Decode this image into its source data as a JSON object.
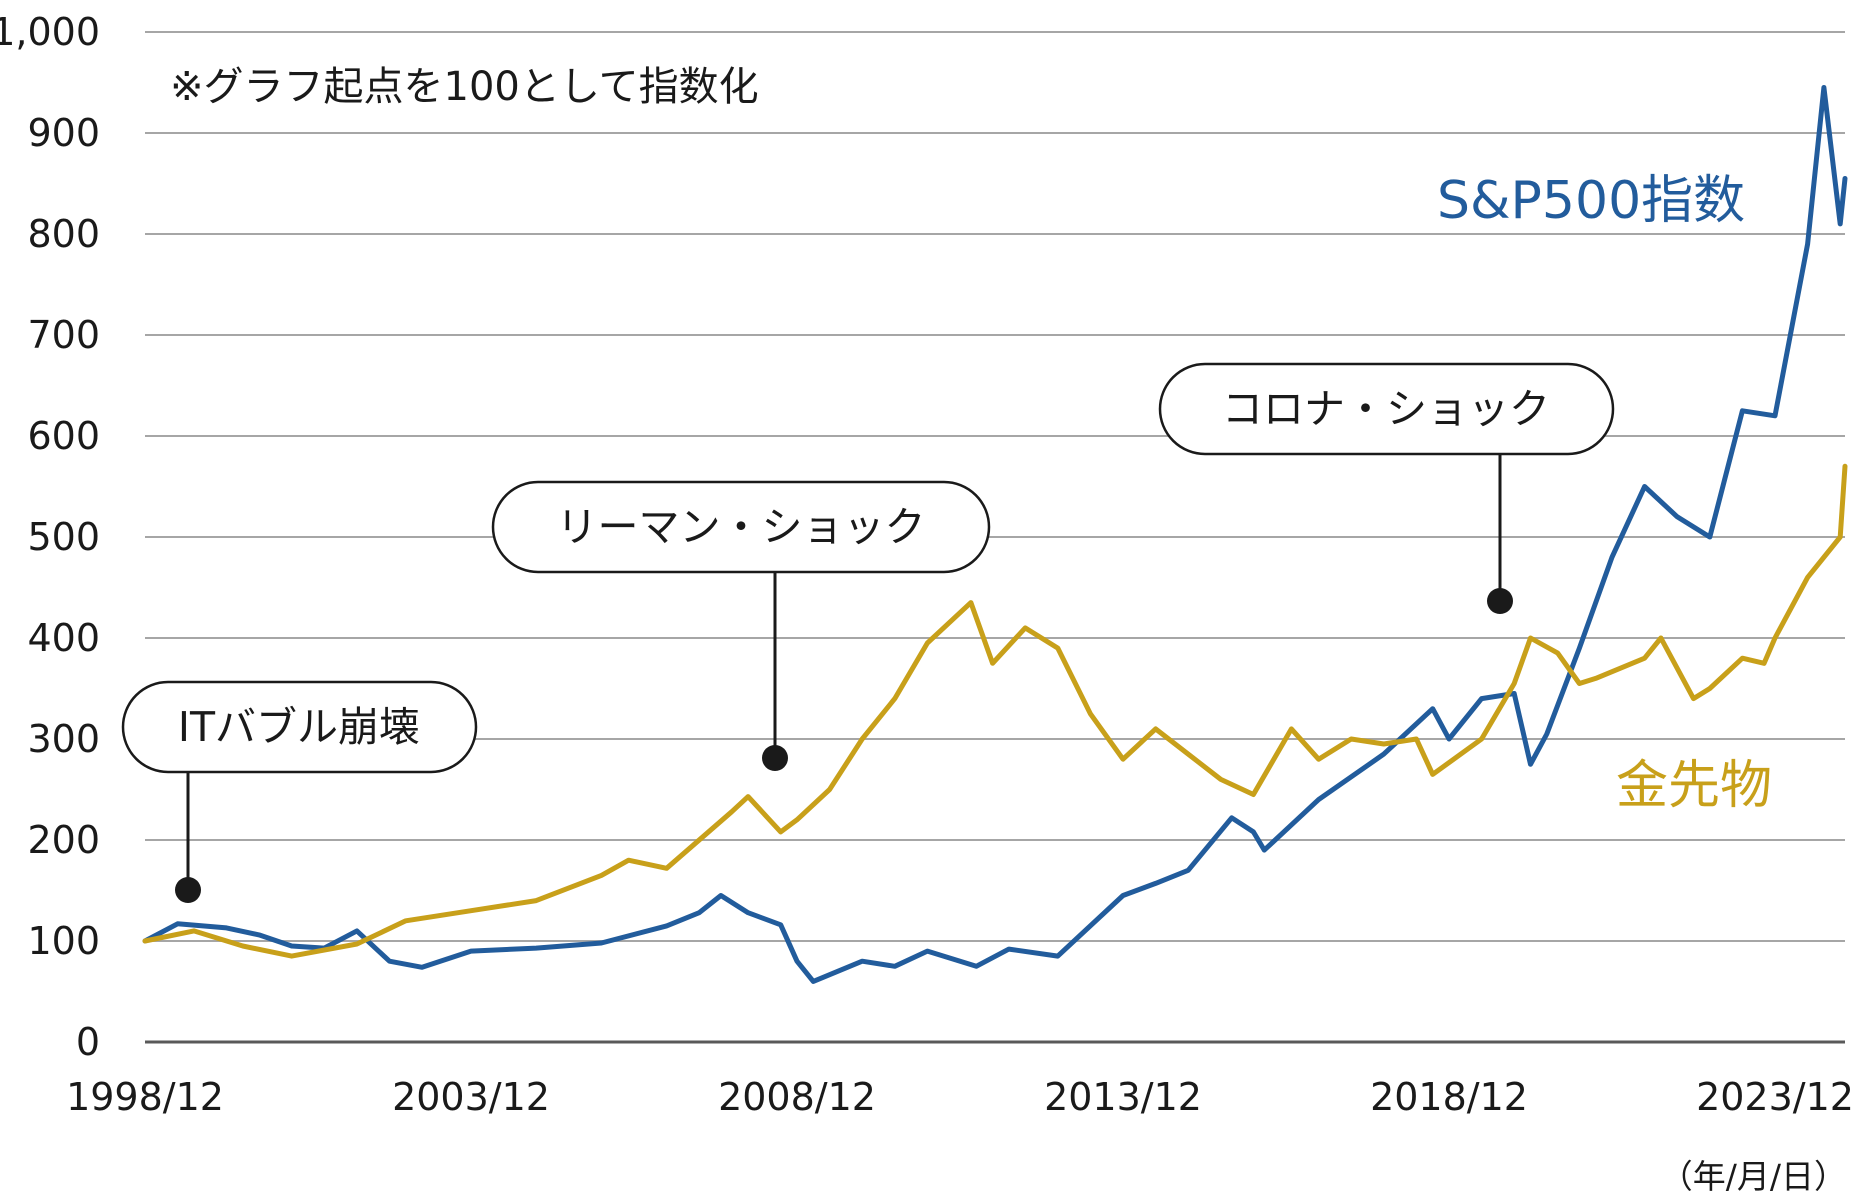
{
  "chart_data": {
    "type": "line",
    "title": "",
    "annotation_note": "※グラフ起点を100として指数化",
    "unit_note": "（年/月/日）",
    "xlabel": "",
    "ylabel": "",
    "x_ticks": [
      "1998/12",
      "2003/12",
      "2008/12",
      "2013/12",
      "2018/12",
      "2023/12"
    ],
    "y_ticks": [
      "0",
      "100",
      "200",
      "300",
      "400",
      "500",
      "600",
      "700",
      "800",
      "900",
      "1,000"
    ],
    "ylim": [
      0,
      1000
    ],
    "xlim": [
      "1998-12",
      "2025-03"
    ],
    "grid": true,
    "series": [
      {
        "name": "S&P500指数",
        "color": "#225c9c",
        "x": [
          "1998-12",
          "1999-06",
          "2000-03",
          "2000-09",
          "2001-03",
          "2001-09",
          "2002-03",
          "2002-09",
          "2003-03",
          "2003-12",
          "2004-12",
          "2005-12",
          "2006-12",
          "2007-06",
          "2007-10",
          "2008-03",
          "2008-09",
          "2008-12",
          "2009-03",
          "2009-12",
          "2010-06",
          "2010-12",
          "2011-09",
          "2012-03",
          "2012-12",
          "2013-12",
          "2014-06",
          "2014-12",
          "2015-08",
          "2015-12",
          "2016-02",
          "2016-12",
          "2017-12",
          "2018-09",
          "2018-12",
          "2019-06",
          "2019-12",
          "2020-03",
          "2020-06",
          "2020-12",
          "2021-06",
          "2021-12",
          "2022-06",
          "2022-12",
          "2023-06",
          "2023-12",
          "2024-06",
          "2024-09",
          "2024-12",
          "2025-03"
        ],
        "values": [
          100,
          117,
          113,
          106,
          95,
          93,
          110,
          80,
          74,
          90,
          93,
          98,
          115,
          128,
          145,
          128,
          116,
          80,
          60,
          80,
          75,
          90,
          75,
          92,
          85,
          145,
          157,
          170,
          222,
          208,
          190,
          240,
          285,
          330,
          300,
          340,
          345,
          275,
          305,
          390,
          480,
          550,
          520,
          500,
          625,
          620,
          790,
          945,
          810,
          855
        ]
      },
      {
        "name": "金先物",
        "color": "#c8a01a",
        "x": [
          "1998-12",
          "1999-09",
          "2000-06",
          "2001-03",
          "2002-03",
          "2002-12",
          "2003-12",
          "2004-12",
          "2005-12",
          "2006-05",
          "2006-12",
          "2007-12",
          "2008-03",
          "2008-09",
          "2008-12",
          "2009-06",
          "2009-12",
          "2010-06",
          "2010-12",
          "2011-08",
          "2011-12",
          "2012-06",
          "2012-12",
          "2013-06",
          "2013-12",
          "2014-06",
          "2014-12",
          "2015-06",
          "2015-12",
          "2016-07",
          "2016-12",
          "2017-06",
          "2017-12",
          "2018-06",
          "2018-09",
          "2019-06",
          "2019-12",
          "2020-03",
          "2020-08",
          "2020-12",
          "2021-03",
          "2021-12",
          "2022-03",
          "2022-09",
          "2022-12",
          "2023-06",
          "2023-10",
          "2023-12",
          "2024-06",
          "2024-12",
          "2025-03"
        ],
        "values": [
          100,
          110,
          95,
          85,
          97,
          120,
          130,
          140,
          165,
          180,
          172,
          228,
          243,
          208,
          220,
          250,
          300,
          340,
          395,
          435,
          375,
          410,
          390,
          325,
          280,
          310,
          285,
          260,
          245,
          310,
          280,
          300,
          295,
          300,
          265,
          300,
          355,
          400,
          385,
          355,
          360,
          380,
          400,
          340,
          350,
          380,
          375,
          400,
          460,
          500,
          570
        ]
      }
    ],
    "series_labels": {
      "sp500": "S&P500指数",
      "gold": "金先物"
    },
    "annotations": [
      {
        "id": "it-bubble",
        "text": "ITバブル崩壊"
      },
      {
        "id": "lehman",
        "text": "リーマン・ショック"
      },
      {
        "id": "corona",
        "text": "コロナ・ショック"
      }
    ]
  }
}
